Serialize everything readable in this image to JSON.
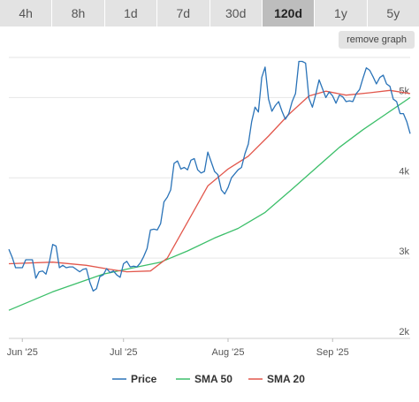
{
  "range_tabs": [
    {
      "label": "4h",
      "active": false
    },
    {
      "label": "8h",
      "active": false
    },
    {
      "label": "1d",
      "active": false
    },
    {
      "label": "7d",
      "active": false
    },
    {
      "label": "30d",
      "active": false
    },
    {
      "label": "120d",
      "active": true
    },
    {
      "label": "1y",
      "active": false
    },
    {
      "label": "5y",
      "active": false
    }
  ],
  "remove_graph_label": "remove graph",
  "chart_data": {
    "type": "line",
    "x_type": "date",
    "xlim": [
      "2025-05-28",
      "2025-09-24"
    ],
    "ylim": [
      2000,
      5500
    ],
    "y_ticks": [
      {
        "value": 2000,
        "label": "2k"
      },
      {
        "value": 3000,
        "label": "3k"
      },
      {
        "value": 4000,
        "label": "4k"
      },
      {
        "value": 5000,
        "label": "5k"
      }
    ],
    "x_ticks": [
      {
        "value": "2025-06-01",
        "label": "Jun '25"
      },
      {
        "value": "2025-07-01",
        "label": "Jul '25"
      },
      {
        "value": "2025-08-01",
        "label": "Aug '25"
      },
      {
        "value": "2025-09-01",
        "label": "Sep '25"
      }
    ],
    "grid": true,
    "legend_position": "bottom",
    "series": [
      {
        "name": "Price",
        "color": "#2a73b8",
        "points": [
          [
            "2025-05-28",
            3110
          ],
          [
            "2025-05-29",
            3010
          ],
          [
            "2025-05-30",
            2880
          ],
          [
            "2025-05-31",
            2880
          ],
          [
            "2025-06-01",
            2880
          ],
          [
            "2025-06-02",
            2980
          ],
          [
            "2025-06-03",
            2980
          ],
          [
            "2025-06-04",
            2980
          ],
          [
            "2025-06-05",
            2750
          ],
          [
            "2025-06-06",
            2830
          ],
          [
            "2025-06-07",
            2840
          ],
          [
            "2025-06-08",
            2800
          ],
          [
            "2025-06-09",
            2950
          ],
          [
            "2025-06-10",
            3170
          ],
          [
            "2025-06-11",
            3150
          ],
          [
            "2025-06-12",
            2880
          ],
          [
            "2025-06-13",
            2910
          ],
          [
            "2025-06-14",
            2880
          ],
          [
            "2025-06-15",
            2890
          ],
          [
            "2025-06-16",
            2890
          ],
          [
            "2025-06-17",
            2860
          ],
          [
            "2025-06-18",
            2830
          ],
          [
            "2025-06-19",
            2860
          ],
          [
            "2025-06-20",
            2870
          ],
          [
            "2025-06-21",
            2700
          ],
          [
            "2025-06-22",
            2590
          ],
          [
            "2025-06-23",
            2620
          ],
          [
            "2025-06-24",
            2770
          ],
          [
            "2025-06-25",
            2790
          ],
          [
            "2025-06-26",
            2870
          ],
          [
            "2025-06-27",
            2820
          ],
          [
            "2025-06-28",
            2840
          ],
          [
            "2025-06-29",
            2790
          ],
          [
            "2025-06-30",
            2760
          ],
          [
            "2025-07-01",
            2930
          ],
          [
            "2025-07-02",
            2960
          ],
          [
            "2025-07-03",
            2890
          ],
          [
            "2025-07-04",
            2900
          ],
          [
            "2025-07-05",
            2890
          ],
          [
            "2025-07-06",
            2940
          ],
          [
            "2025-07-07",
            3020
          ],
          [
            "2025-07-08",
            3120
          ],
          [
            "2025-07-09",
            3350
          ],
          [
            "2025-07-10",
            3360
          ],
          [
            "2025-07-11",
            3350
          ],
          [
            "2025-07-12",
            3430
          ],
          [
            "2025-07-13",
            3700
          ],
          [
            "2025-07-14",
            3760
          ],
          [
            "2025-07-15",
            3850
          ],
          [
            "2025-07-16",
            4180
          ],
          [
            "2025-07-17",
            4210
          ],
          [
            "2025-07-18",
            4110
          ],
          [
            "2025-07-19",
            4130
          ],
          [
            "2025-07-20",
            4100
          ],
          [
            "2025-07-21",
            4220
          ],
          [
            "2025-07-22",
            4240
          ],
          [
            "2025-07-23",
            4100
          ],
          [
            "2025-07-24",
            4060
          ],
          [
            "2025-07-25",
            4080
          ],
          [
            "2025-07-26",
            4320
          ],
          [
            "2025-07-27",
            4200
          ],
          [
            "2025-07-28",
            4080
          ],
          [
            "2025-07-29",
            4040
          ],
          [
            "2025-07-30",
            3850
          ],
          [
            "2025-07-31",
            3800
          ],
          [
            "2025-08-01",
            3880
          ],
          [
            "2025-08-02",
            4000
          ],
          [
            "2025-08-03",
            4050
          ],
          [
            "2025-08-04",
            4100
          ],
          [
            "2025-08-05",
            4130
          ],
          [
            "2025-08-06",
            4300
          ],
          [
            "2025-08-07",
            4420
          ],
          [
            "2025-08-08",
            4700
          ],
          [
            "2025-08-09",
            4880
          ],
          [
            "2025-08-10",
            4820
          ],
          [
            "2025-08-11",
            5250
          ],
          [
            "2025-08-12",
            5380
          ],
          [
            "2025-08-13",
            4980
          ],
          [
            "2025-08-14",
            4830
          ],
          [
            "2025-08-15",
            4900
          ],
          [
            "2025-08-16",
            4950
          ],
          [
            "2025-08-17",
            4830
          ],
          [
            "2025-08-18",
            4730
          ],
          [
            "2025-08-19",
            4800
          ],
          [
            "2025-08-20",
            4950
          ],
          [
            "2025-08-21",
            5050
          ],
          [
            "2025-08-22",
            5450
          ],
          [
            "2025-08-23",
            5450
          ],
          [
            "2025-08-24",
            5430
          ],
          [
            "2025-08-25",
            4990
          ],
          [
            "2025-08-26",
            4880
          ],
          [
            "2025-08-27",
            5040
          ],
          [
            "2025-08-28",
            5220
          ],
          [
            "2025-08-29",
            5110
          ],
          [
            "2025-08-30",
            5000
          ],
          [
            "2025-08-31",
            5070
          ],
          [
            "2025-09-01",
            5020
          ],
          [
            "2025-09-02",
            4930
          ],
          [
            "2025-09-03",
            5030
          ],
          [
            "2025-09-04",
            5010
          ],
          [
            "2025-09-05",
            4950
          ],
          [
            "2025-09-06",
            4960
          ],
          [
            "2025-09-07",
            4950
          ],
          [
            "2025-09-08",
            5050
          ],
          [
            "2025-09-09",
            5100
          ],
          [
            "2025-09-10",
            5240
          ],
          [
            "2025-09-11",
            5370
          ],
          [
            "2025-09-12",
            5340
          ],
          [
            "2025-09-13",
            5260
          ],
          [
            "2025-09-14",
            5170
          ],
          [
            "2025-09-15",
            5250
          ],
          [
            "2025-09-16",
            5280
          ],
          [
            "2025-09-17",
            5170
          ],
          [
            "2025-09-18",
            5140
          ],
          [
            "2025-09-19",
            4980
          ],
          [
            "2025-09-20",
            4950
          ],
          [
            "2025-09-21",
            4800
          ],
          [
            "2025-09-22",
            4800
          ],
          [
            "2025-09-23",
            4700
          ],
          [
            "2025-09-24",
            4550
          ]
        ]
      },
      {
        "name": "SMA 50",
        "color": "#3cbf6a",
        "points": [
          [
            "2025-05-28",
            2350
          ],
          [
            "2025-06-10",
            2580
          ],
          [
            "2025-06-25",
            2800
          ],
          [
            "2025-07-04",
            2880
          ],
          [
            "2025-07-12",
            2950
          ],
          [
            "2025-07-20",
            3090
          ],
          [
            "2025-07-28",
            3250
          ],
          [
            "2025-08-04",
            3370
          ],
          [
            "2025-08-12",
            3570
          ],
          [
            "2025-08-20",
            3860
          ],
          [
            "2025-08-27",
            4120
          ],
          [
            "2025-09-03",
            4380
          ],
          [
            "2025-09-10",
            4600
          ],
          [
            "2025-09-17",
            4800
          ],
          [
            "2025-09-24",
            5000
          ]
        ]
      },
      {
        "name": "SMA 20",
        "color": "#e2574c",
        "points": [
          [
            "2025-05-28",
            2930
          ],
          [
            "2025-06-10",
            2950
          ],
          [
            "2025-06-20",
            2910
          ],
          [
            "2025-06-27",
            2860
          ],
          [
            "2025-07-02",
            2830
          ],
          [
            "2025-07-09",
            2840
          ],
          [
            "2025-07-14",
            3000
          ],
          [
            "2025-07-20",
            3450
          ],
          [
            "2025-07-26",
            3900
          ],
          [
            "2025-08-01",
            4110
          ],
          [
            "2025-08-07",
            4270
          ],
          [
            "2025-08-13",
            4520
          ],
          [
            "2025-08-19",
            4790
          ],
          [
            "2025-08-25",
            5020
          ],
          [
            "2025-08-30",
            5080
          ],
          [
            "2025-09-05",
            5030
          ],
          [
            "2025-09-12",
            5060
          ],
          [
            "2025-09-18",
            5090
          ],
          [
            "2025-09-24",
            5050
          ]
        ]
      }
    ]
  }
}
